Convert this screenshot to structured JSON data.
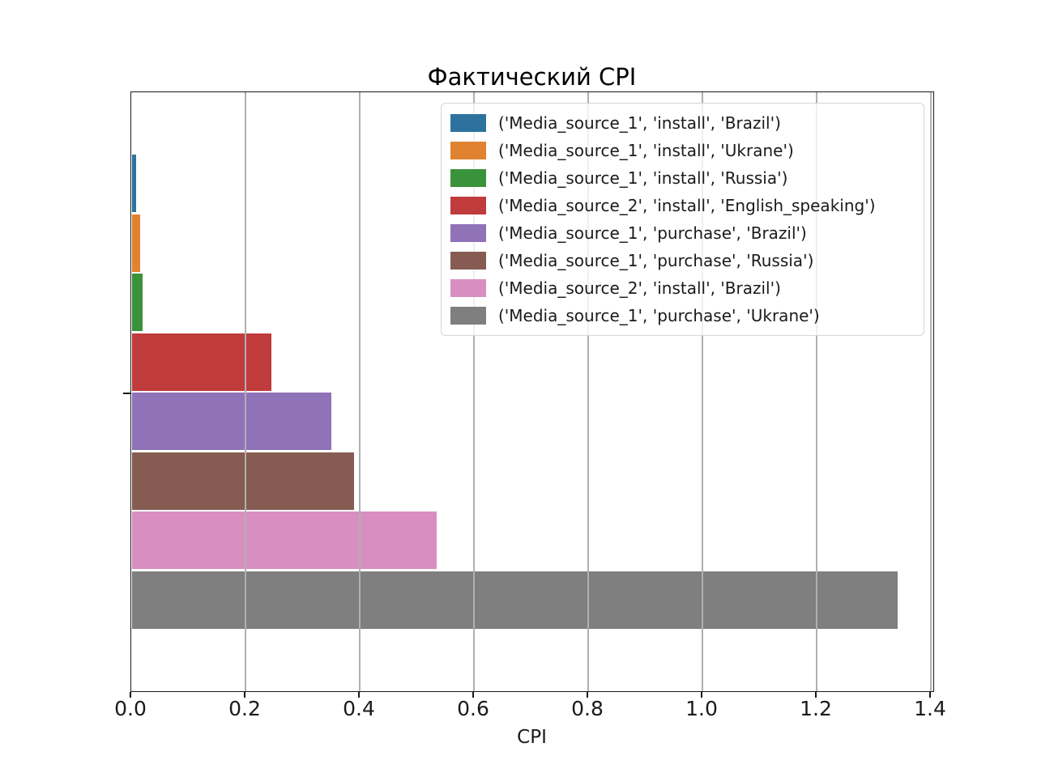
{
  "title": "Фактический CPI",
  "axes": {
    "xlabel": "CPI"
  },
  "chart_data": {
    "type": "bar",
    "orientation": "horizontal",
    "title": "Фактический CPI",
    "xlabel": "CPI",
    "ylabel": "",
    "xlim": [
      0,
      1.405
    ],
    "grid": true,
    "grid_color": "#b0b0b0",
    "legend_position": "upper right",
    "xticks": [
      {
        "label": "0.0",
        "value": 0.0
      },
      {
        "label": "0.2",
        "value": 0.2
      },
      {
        "label": "0.4",
        "value": 0.4
      },
      {
        "label": "0.6",
        "value": 0.6
      },
      {
        "label": "0.8",
        "value": 0.8
      },
      {
        "label": "1.0",
        "value": 1.0
      },
      {
        "label": "1.2",
        "value": 1.2
      },
      {
        "label": "1.4",
        "value": 1.4
      }
    ],
    "series": [
      {
        "name": "('Media_source_1', 'install', 'Brazil')",
        "value": 0.007,
        "color": "#2d729f"
      },
      {
        "name": "('Media_source_1', 'install', 'Ukrane')",
        "value": 0.014,
        "color": "#e08230"
      },
      {
        "name": "('Media_source_1', 'install', 'Russia')",
        "value": 0.018,
        "color": "#3a923a"
      },
      {
        "name": "('Media_source_2', 'install', 'English_speaking')",
        "value": 0.244,
        "color": "#c03b3c"
      },
      {
        "name": "('Media_source_1', 'purchase', 'Brazil')",
        "value": 0.349,
        "color": "#8f72b8"
      },
      {
        "name": "('Media_source_1', 'purchase', 'Russia')",
        "value": 0.388,
        "color": "#865c52"
      },
      {
        "name": "('Media_source_2', 'install', 'Brazil')",
        "value": 0.533,
        "color": "#d98ec2"
      },
      {
        "name": "('Media_source_1', 'purchase', 'Ukrane')",
        "value": 1.34,
        "color": "#7f7f7f"
      }
    ]
  }
}
